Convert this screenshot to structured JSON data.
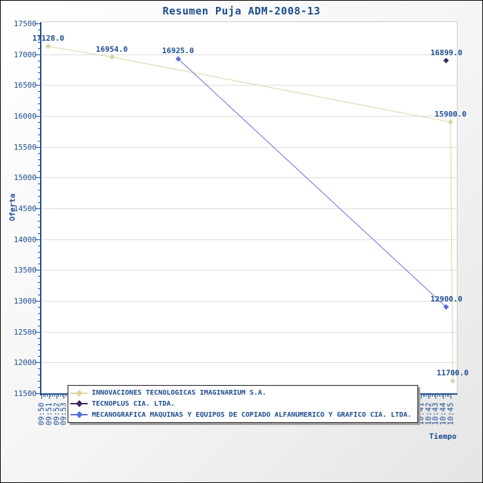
{
  "title": "Resumen Puja ADM-2008-13",
  "colors": {
    "text": "#1d4d8f",
    "axis": "#1d4d8f",
    "grid": "#dcdcdc",
    "plot_border": "#cccccc",
    "plot_bg": "#ffffff",
    "legend_border": "#151515",
    "legend_shadow": "#a2a2a2",
    "series_khaki": "#d6d6a6",
    "series_purple": "#40265f",
    "series_blue": "#5b6edc"
  },
  "y_axis": {
    "label": "Oferta",
    "min": 11500,
    "max": 17500,
    "major_step": 500,
    "minor_step": 100,
    "tick_labels": [
      "17500",
      "17000",
      "16500",
      "16000",
      "15500",
      "15000",
      "14500",
      "14000",
      "13500",
      "13000",
      "12500",
      "12000",
      "11500"
    ]
  },
  "x_axis": {
    "label": "Tiempo",
    "start_time": "09:50",
    "end_time": "10:45",
    "total_minutes": 55,
    "visible_tick_labels": [
      {
        "label": "09:50",
        "minute": 0
      },
      {
        "label": "09:51",
        "minute": 1
      },
      {
        "label": "09:52",
        "minute": 2
      },
      {
        "label": "09:53",
        "minute": 3
      },
      {
        "label": "10:40",
        "minute": 50
      },
      {
        "label": "10:41",
        "minute": 51
      },
      {
        "label": "10:42",
        "minute": 52
      },
      {
        "label": "10:43",
        "minute": 53
      },
      {
        "label": "10:44",
        "minute": 54
      },
      {
        "label": "10:45",
        "minute": 55
      }
    ]
  },
  "legend": {
    "entries": [
      {
        "label": "INNOVACIONES TECNOLOGICAS IMAGINARIUM S.A.",
        "color": "#d6d6a6"
      },
      {
        "label": "TECNOPLUS CIA. LTDA.",
        "color": "#40265f"
      },
      {
        "label": "MECANOGRAFICA MAQUINAS Y EQUIPOS DE COPIADO ALFANUMERICO Y GRAFICO CIA. LTDA.",
        "color": "#5b6edc"
      }
    ]
  },
  "chart_data": {
    "type": "line",
    "title": "Resumen Puja ADM-2008-13",
    "xlabel": "Tiempo",
    "ylabel": "Oferta",
    "ylim": [
      11500,
      17500
    ],
    "x_range": [
      "09:50",
      "10:45"
    ],
    "grid": "horizontal-only",
    "legend_position": "bottom-overlay",
    "marker": "diamond",
    "series": [
      {
        "name": "INNOVACIONES TECNOLOGICAS IMAGINARIUM S.A.",
        "color": "#d6d6a6",
        "points": [
          {
            "time": "09:51",
            "minute": 0.9,
            "value": 17128.0,
            "label": "17128.0"
          },
          {
            "time": "09:59",
            "minute": 9.5,
            "value": 16954.0,
            "label": "16954.0"
          },
          {
            "time": "10:45",
            "minute": 55.0,
            "value": 15900.0,
            "label": "15900.0"
          },
          {
            "time": "10:45",
            "minute": 55.3,
            "value": 11700.0,
            "label": "11700.0"
          }
        ]
      },
      {
        "name": "TECNOPLUS CIA. LTDA.",
        "color": "#40265f",
        "points": [
          {
            "time": "10:44",
            "minute": 54.4,
            "value": 16899.0,
            "label": "16899.0"
          }
        ]
      },
      {
        "name": "MECANOGRAFICA MAQUINAS Y EQUIPOS DE COPIADO ALFANUMERICO Y GRAFICO CIA. LTDA.",
        "color": "#5b6edc",
        "points": [
          {
            "time": "10:08",
            "minute": 18.4,
            "value": 16925.0,
            "label": "16925.0"
          },
          {
            "time": "10:44",
            "minute": 54.4,
            "value": 12900.0,
            "label": "12900.0"
          }
        ]
      }
    ]
  }
}
